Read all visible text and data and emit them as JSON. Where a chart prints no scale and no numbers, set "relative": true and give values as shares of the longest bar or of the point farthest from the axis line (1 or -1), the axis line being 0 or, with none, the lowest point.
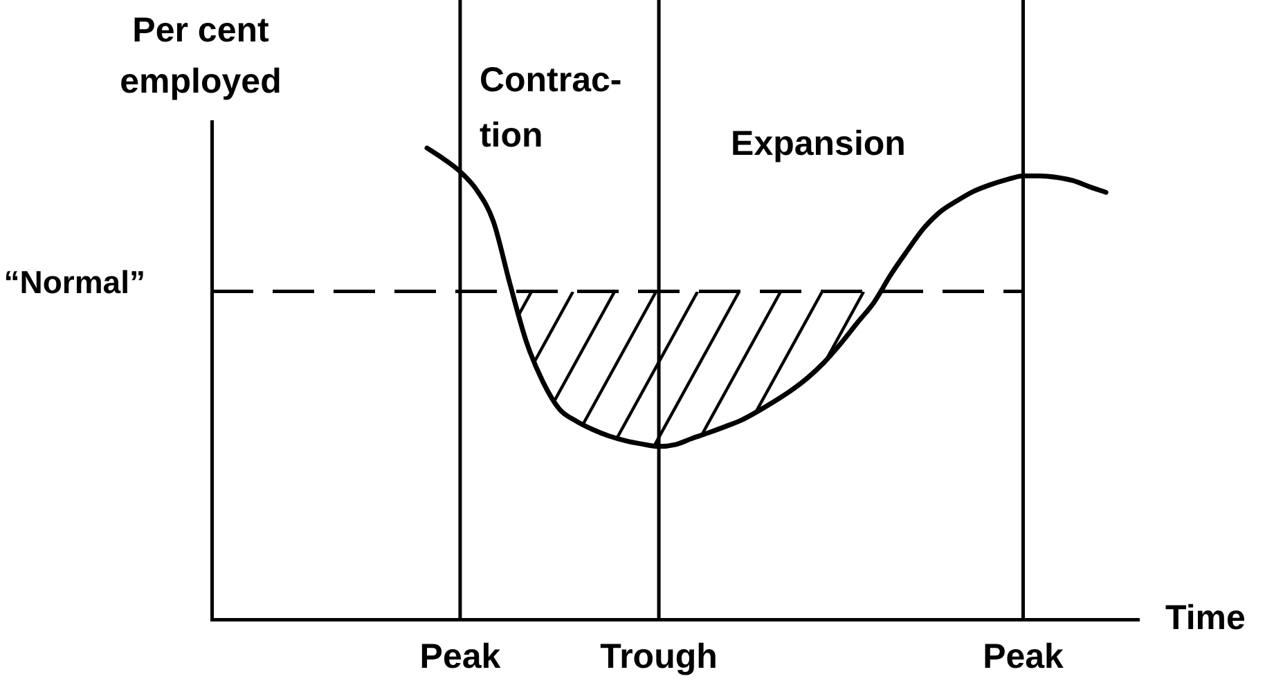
{
  "chart_data": {
    "type": "line",
    "relative": true,
    "grid": "x",
    "categories": [
      null,
      null,
      null,
      null,
      null,
      null,
      null,
      null,
      null,
      null,
      null,
      null,
      null,
      null,
      null,
      "Peak",
      null,
      null,
      null,
      null,
      null,
      null,
      null,
      null,
      null,
      null,
      null,
      "Trough",
      null,
      null,
      null,
      null,
      null,
      null,
      null,
      null,
      null,
      null,
      null,
      null,
      null,
      null,
      null,
      null,
      null,
      null,
      null,
      null,
      null,
      "Peak",
      null,
      null,
      null,
      null,
      null,
      null,
      null
    ],
    "series": [
      {
        "color": "#000000",
        "values": [
          null,
          null,
          null,
          null,
          null,
          null,
          null,
          null,
          null,
          null,
          null,
          null,
          null,
          1,
          0.977,
          0.95,
          0.911,
          0.845,
          0.713,
          0.589,
          0.504,
          0.446,
          0.421,
          0.403,
          0.389,
          0.379,
          0.372,
          0.367,
          0.371,
          0.384,
          0.396,
          0.409,
          0.423,
          0.442,
          0.463,
          0.486,
          0.513,
          0.546,
          0.586,
          0.63,
          0.673,
          0.731,
          0.782,
          0.83,
          0.865,
          0.888,
          0.908,
          0.922,
          0.933,
          0.941,
          0.941,
          0.938,
          0.931,
          0.918,
          0.906,
          null,
          null
        ]
      }
    ],
    "xlabel": "Time",
    "ylabel": "Per cent employed",
    "ref_lines": [
      {
        "axis": "y",
        "value": 0.696,
        "label": "“Normal”",
        "line_style": "dashed"
      }
    ],
    "annotations": [
      "Contrac-\ntion",
      "Expansion"
    ]
  }
}
